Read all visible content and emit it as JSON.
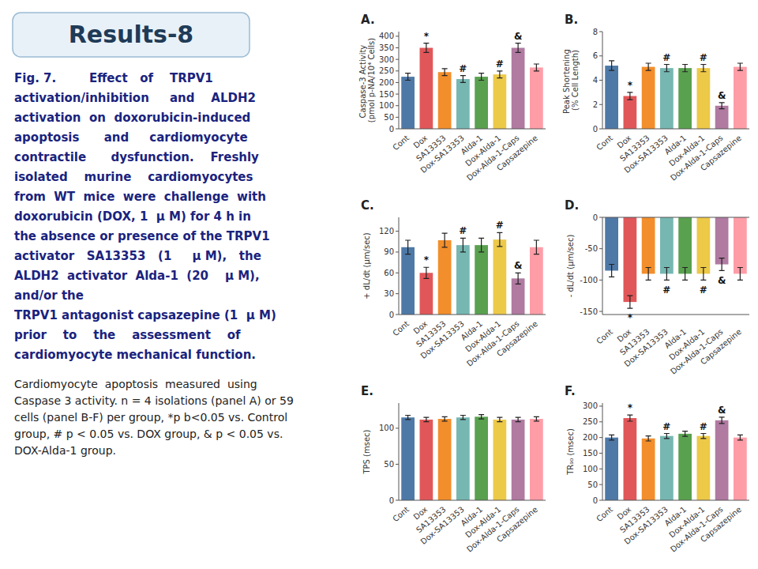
{
  "title": "Results-8",
  "caption_bold": [
    "Fig. 7.        Effect   of    TRPV1",
    "activation/inhibition     and    ALDH2",
    "activation  on  doxorubicin-induced",
    "apoptosis      and     cardiomyocyte",
    "contractile      dysfunction.    Freshly",
    "isolated    murine    cardiomyocytes",
    "from  WT  mice  were  challenge  with",
    "doxorubicin (DOX, 1  μ M) for 4 h in",
    "the absence or presence of the TRPV1",
    "activator   SA13353   (1     μ M),   the",
    "ALDH2  activator  Alda-1  (20    μ M),",
    "and/or the",
    "TRPV1 antagonist capsazepine (1  μ M)",
    "prior    to    the    assessment    of",
    "cardiomyocyte mechanical function."
  ],
  "caption": [
    "Cardiomyocyte  apoptosis  measured  using",
    "Caspase 3 activity. n = 4 isolations (panel A) or 59",
    "cells (panel B-F) per group, *p b<0.05 vs. Control",
    "group, # p < 0.05 vs. DOX group, & p < 0.05 vs.",
    "DOX-Alda-1 group."
  ],
  "chart_data": [
    {
      "type": "bar",
      "title": "A.",
      "categories": [
        "Cont",
        "Dox",
        "SA13353",
        "Dox-SA13353",
        "Alda-1",
        "Dox-Alda-1",
        "Dox-Alda-1-Caps",
        "Capsazepine"
      ],
      "values": [
        225,
        350,
        245,
        215,
        225,
        235,
        350,
        265
      ],
      "errors": [
        15,
        20,
        15,
        15,
        15,
        15,
        20,
        15
      ],
      "ylabel": "Caspase-3 Activity (pmol p-NA/10⁴ Cells)",
      "ylim": [
        0,
        420
      ],
      "yticks": [
        0,
        50,
        100,
        150,
        200,
        250,
        300,
        350,
        400
      ],
      "grid": false,
      "colors": [
        "#4e79a7",
        "#e15759",
        "#f28e2b",
        "#76b7b2",
        "#59a14f",
        "#edc948",
        "#b07aa1",
        "#ff9da7"
      ],
      "annotations": [
        {
          "category": "Dox",
          "text": "*"
        },
        {
          "category": "Dox-SA13353",
          "text": "#"
        },
        {
          "category": "Dox-Alda-1",
          "text": "#"
        },
        {
          "category": "Dox-Alda-1-Caps",
          "text": "&"
        }
      ]
    },
    {
      "type": "bar",
      "title": "B.",
      "categories": [
        "Cont",
        "Dox",
        "SA13353",
        "Dox-SA13353",
        "Alda-1",
        "Dox-Alda-1",
        "Dox-Alda-1-Caps",
        "Capsazepine"
      ],
      "values": [
        5.2,
        2.7,
        5.1,
        5.0,
        5.0,
        5.0,
        1.9,
        5.1
      ],
      "errors": [
        0.4,
        0.3,
        0.3,
        0.3,
        0.3,
        0.3,
        0.25,
        0.3
      ],
      "ylabel": "Peak Shortening (% Cell Length)",
      "ylim": [
        0,
        8
      ],
      "yticks": [
        0,
        2,
        4,
        6,
        8
      ],
      "grid": false,
      "colors": [
        "#4e79a7",
        "#e15759",
        "#f28e2b",
        "#76b7b2",
        "#59a14f",
        "#edc948",
        "#b07aa1",
        "#ff9da7"
      ],
      "annotations": [
        {
          "category": "Dox",
          "text": "*"
        },
        {
          "category": "Dox-SA13353",
          "text": "#"
        },
        {
          "category": "Dox-Alda-1",
          "text": "#"
        },
        {
          "category": "Dox-Alda-1-Caps",
          "text": "&"
        }
      ]
    },
    {
      "type": "bar",
      "title": "C.",
      "categories": [
        "Cont",
        "Dox",
        "SA13353",
        "Dox-SA13353",
        "Alda-1",
        "Dox-Alda-1",
        "Dox-Alda-1-Caps",
        "Capsazepine"
      ],
      "values": [
        97,
        60,
        107,
        100,
        100,
        108,
        52,
        97
      ],
      "errors": [
        10,
        8,
        10,
        10,
        10,
        10,
        8,
        10
      ],
      "ylabel": "+ dL/dt (μm/sec)",
      "ylim": [
        0,
        140
      ],
      "yticks": [
        0,
        30,
        60,
        90,
        120
      ],
      "grid": false,
      "colors": [
        "#4e79a7",
        "#e15759",
        "#f28e2b",
        "#76b7b2",
        "#59a14f",
        "#edc948",
        "#b07aa1",
        "#ff9da7"
      ],
      "annotations": [
        {
          "category": "Dox",
          "text": "*"
        },
        {
          "category": "Dox-SA13353",
          "text": "#"
        },
        {
          "category": "Dox-Alda-1",
          "text": "#"
        },
        {
          "category": "Dox-Alda-1-Caps",
          "text": "&"
        }
      ]
    },
    {
      "type": "bar",
      "title": "D.",
      "categories": [
        "Cont",
        "Dox",
        "SA13353",
        "Dox-SA13353",
        "Alda-1",
        "Dox-Alda-1",
        "Dox-Alda-1-Caps",
        "Capsazepine"
      ],
      "values": [
        -85,
        -135,
        -90,
        -90,
        -90,
        -90,
        -75,
        -90
      ],
      "errors": [
        10,
        10,
        10,
        10,
        10,
        10,
        10,
        10
      ],
      "ylabel": "- dL/dt (μm/sec)",
      "ylim": [
        -155,
        0
      ],
      "yticks": [
        -150,
        -100,
        -50,
        0
      ],
      "grid": false,
      "colors": [
        "#4e79a7",
        "#e15759",
        "#f28e2b",
        "#76b7b2",
        "#59a14f",
        "#edc948",
        "#b07aa1",
        "#ff9da7"
      ],
      "annotations": [
        {
          "category": "Dox",
          "text": "*"
        },
        {
          "category": "Dox-SA13353",
          "text": "#"
        },
        {
          "category": "Dox-Alda-1",
          "text": "#"
        },
        {
          "category": "Dox-Alda-1-Caps",
          "text": "&"
        }
      ]
    },
    {
      "type": "bar",
      "title": "E.",
      "categories": [
        "Cont",
        "Dox",
        "SA13353",
        "Dox-SA13353",
        "Alda-1",
        "Dox-Alda-1",
        "Dox-Alda-1-Caps",
        "Capsazepine"
      ],
      "values": [
        115,
        112,
        113,
        115,
        116,
        112,
        112,
        113
      ],
      "errors": [
        3,
        3,
        3,
        3,
        3,
        3,
        3,
        3
      ],
      "ylabel": "TPS (msec)",
      "ylim": [
        0,
        135
      ],
      "yticks": [
        0,
        50,
        100
      ],
      "grid": false,
      "colors": [
        "#4e79a7",
        "#e15759",
        "#f28e2b",
        "#76b7b2",
        "#59a14f",
        "#edc948",
        "#b07aa1",
        "#ff9da7"
      ]
    },
    {
      "type": "bar",
      "title": "F.",
      "categories": [
        "Cont",
        "Dox",
        "SA13353",
        "Dox-SA13353",
        "Alda-1",
        "Dox-Alda-1",
        "Dox-Alda-1-Caps",
        "Capsazepine"
      ],
      "values": [
        200,
        262,
        197,
        205,
        212,
        205,
        255,
        200
      ],
      "errors": [
        8,
        10,
        8,
        8,
        8,
        8,
        10,
        8
      ],
      "ylabel": "TR₉₀ (msec)",
      "ylim": [
        0,
        310
      ],
      "yticks": [
        0,
        50,
        100,
        150,
        200,
        250,
        300
      ],
      "grid": false,
      "colors": [
        "#4e79a7",
        "#e15759",
        "#f28e2b",
        "#76b7b2",
        "#59a14f",
        "#edc948",
        "#b07aa1",
        "#ff9da7"
      ],
      "annotations": [
        {
          "category": "Dox",
          "text": "*"
        },
        {
          "category": "Dox-SA13353",
          "text": "#"
        },
        {
          "category": "Dox-Alda-1",
          "text": "#"
        },
        {
          "category": "Dox-Alda-1-Caps",
          "text": "&"
        }
      ]
    }
  ]
}
